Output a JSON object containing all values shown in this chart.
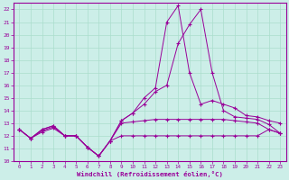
{
  "xlabel": "Windchill (Refroidissement éolien,°C)",
  "background_color": "#cceee8",
  "grid_color": "#aaddcc",
  "line_color": "#990099",
  "spine_color": "#990099",
  "xlim": [
    -0.5,
    23.5
  ],
  "ylim": [
    10,
    22.5
  ],
  "yticks": [
    10,
    11,
    12,
    13,
    14,
    15,
    16,
    17,
    18,
    19,
    20,
    21,
    22
  ],
  "xticks": [
    0,
    1,
    2,
    3,
    4,
    5,
    6,
    7,
    8,
    9,
    10,
    11,
    12,
    13,
    14,
    15,
    16,
    17,
    18,
    19,
    20,
    21,
    22,
    23
  ],
  "line1_x": [
    0,
    1,
    2,
    3,
    4,
    5,
    6,
    7,
    8,
    9,
    10,
    11,
    12,
    13,
    14,
    15,
    16,
    17,
    18,
    19,
    20,
    21,
    22,
    23
  ],
  "line1_y": [
    12.5,
    11.8,
    12.3,
    12.6,
    12.0,
    12.0,
    11.1,
    10.4,
    11.6,
    12.0,
    12.0,
    12.0,
    12.0,
    12.0,
    12.0,
    12.0,
    12.0,
    12.0,
    12.0,
    12.0,
    12.0,
    12.0,
    12.5,
    12.2
  ],
  "line2_x": [
    0,
    1,
    2,
    3,
    4,
    5,
    6,
    7,
    8,
    9,
    10,
    11,
    12,
    13,
    14,
    15,
    16,
    17,
    18,
    19,
    20,
    21,
    22,
    23
  ],
  "line2_y": [
    12.5,
    11.8,
    12.4,
    12.7,
    12.0,
    12.0,
    11.1,
    10.4,
    11.6,
    13.0,
    13.1,
    13.2,
    13.3,
    13.3,
    13.3,
    13.3,
    13.3,
    13.3,
    13.3,
    13.2,
    13.1,
    13.0,
    12.5,
    12.2
  ],
  "line3_x": [
    0,
    1,
    2,
    3,
    4,
    5,
    6,
    7,
    8,
    9,
    10,
    11,
    12,
    13,
    14,
    15,
    16,
    17,
    18,
    19,
    20,
    21,
    22,
    23
  ],
  "line3_y": [
    12.5,
    11.8,
    12.5,
    12.8,
    12.0,
    12.0,
    11.1,
    10.4,
    11.6,
    13.2,
    13.8,
    14.5,
    15.5,
    16.0,
    19.3,
    20.8,
    22.0,
    17.0,
    14.0,
    13.5,
    13.4,
    13.3,
    12.9,
    12.2
  ],
  "line4_x": [
    0,
    1,
    2,
    3,
    4,
    5,
    6,
    7,
    8,
    9,
    10,
    11,
    12,
    13,
    14,
    15,
    16,
    17,
    18,
    19,
    20,
    21,
    22,
    23
  ],
  "line4_y": [
    12.5,
    11.8,
    12.5,
    12.8,
    12.0,
    12.0,
    11.1,
    10.4,
    11.6,
    13.2,
    13.8,
    15.0,
    15.8,
    21.0,
    22.3,
    17.0,
    14.5,
    14.8,
    14.5,
    14.2,
    13.6,
    13.5,
    13.2,
    13.0
  ]
}
